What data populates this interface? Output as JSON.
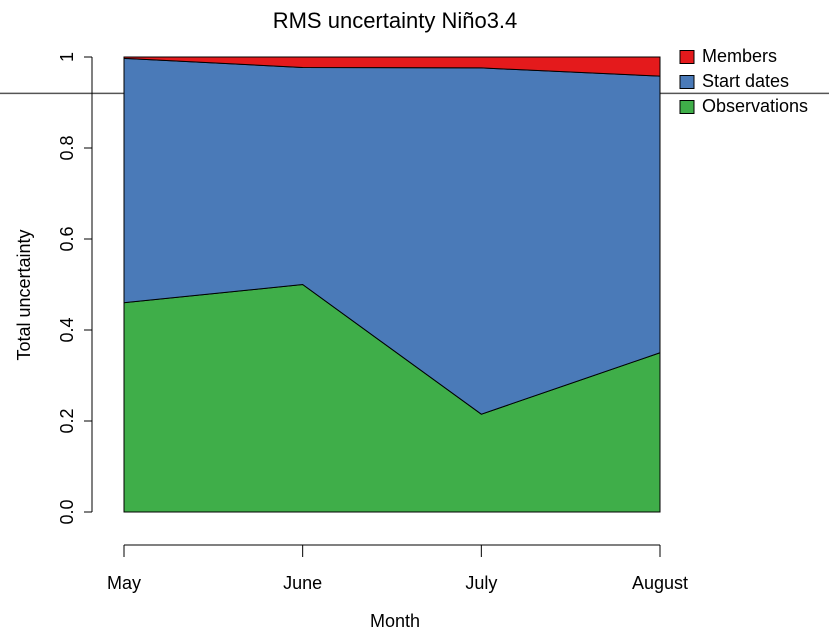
{
  "chart_data": {
    "type": "stacked_area",
    "title": "RMS uncertainty Niño3.4",
    "x_label": "Month",
    "y_label": "Total uncertainty",
    "categories": [
      "May",
      "June",
      "July",
      "August"
    ],
    "series": [
      {
        "name": "Observations",
        "color": "#3fae49",
        "values": [
          0.46,
          0.5,
          0.215,
          0.35
        ]
      },
      {
        "name": "Start dates",
        "color": "#4a7ab8",
        "values": [
          0.537,
          0.477,
          0.761,
          0.608
        ]
      },
      {
        "name": "Members",
        "color": "#e41a1c",
        "values": [
          0.003,
          0.023,
          0.024,
          0.042
        ]
      }
    ],
    "ylim": [
      0,
      1
    ],
    "yticks": [
      {
        "value": 0,
        "label": "0.0"
      },
      0.2,
      0.4,
      0.6,
      0.8,
      1
    ],
    "reference_line": 0.92,
    "legend": "right"
  }
}
